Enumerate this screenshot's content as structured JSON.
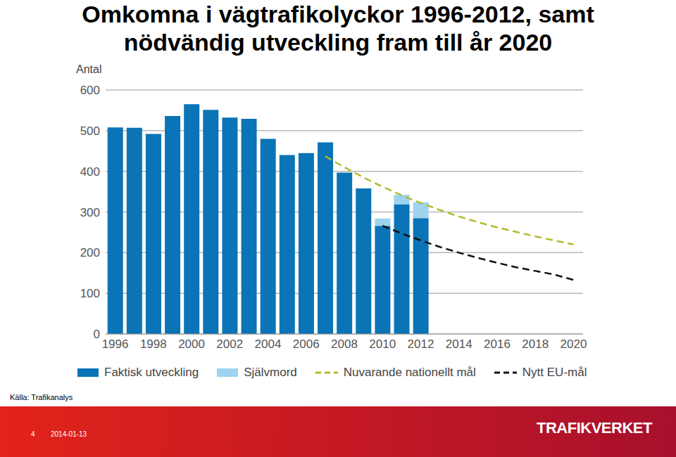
{
  "chart_data": {
    "type": "bar",
    "title": "Omkomna i vägtrafikolyckor 1996-2012, samt nödvändig utveckling fram till år 2020",
    "y_label": "Antal",
    "categories": [
      "1996",
      null,
      "1998",
      null,
      "2000",
      null,
      "2002",
      null,
      "2004",
      null,
      "2006",
      null,
      "2008",
      null,
      "2010",
      null,
      "2012",
      null,
      "2014",
      null,
      "2016",
      null,
      "2018",
      null,
      "2020"
    ],
    "stacked": true,
    "grid": true,
    "ylim": [
      0,
      600
    ],
    "yticks": [
      0,
      100,
      200,
      300,
      400,
      500,
      600
    ],
    "series": [
      {
        "name": "Faktisk utveckling",
        "type": "bar",
        "color": "#0a74b6",
        "values": [
          508,
          507,
          492,
          536,
          565,
          551,
          532,
          529,
          480,
          440,
          445,
          471,
          397,
          358,
          266,
          319,
          285,
          null,
          null,
          null,
          null,
          null,
          null,
          null,
          null
        ]
      },
      {
        "name": "Självmord",
        "type": "bar",
        "color": "#9fd3ef",
        "values": [
          null,
          null,
          null,
          null,
          null,
          null,
          null,
          null,
          null,
          null,
          null,
          null,
          null,
          null,
          18,
          23,
          39,
          null,
          null,
          null,
          null,
          null,
          null,
          null,
          null
        ]
      },
      {
        "name": "Nuvarande nationellt mål",
        "type": "line",
        "line_style": "dashed",
        "color": "#b5b92c",
        "values": [
          null,
          null,
          null,
          null,
          null,
          null,
          null,
          null,
          null,
          null,
          null,
          437,
          410,
          385,
          362,
          341,
          322,
          305,
          289,
          275,
          262,
          251,
          240,
          230,
          220
        ]
      },
      {
        "name": "Nytt EU-mål",
        "type": "line",
        "line_style": "dashed",
        "color": "#111111",
        "values": [
          null,
          null,
          null,
          null,
          null,
          null,
          null,
          null,
          null,
          null,
          null,
          null,
          null,
          null,
          266,
          247,
          230,
          214,
          200,
          187,
          175,
          164,
          155,
          146,
          133
        ]
      }
    ]
  },
  "source": "Källa: Trafikanalys",
  "footer": {
    "page": "4",
    "date": "2014-01-13",
    "logo": "TRAFIKVERKET"
  }
}
